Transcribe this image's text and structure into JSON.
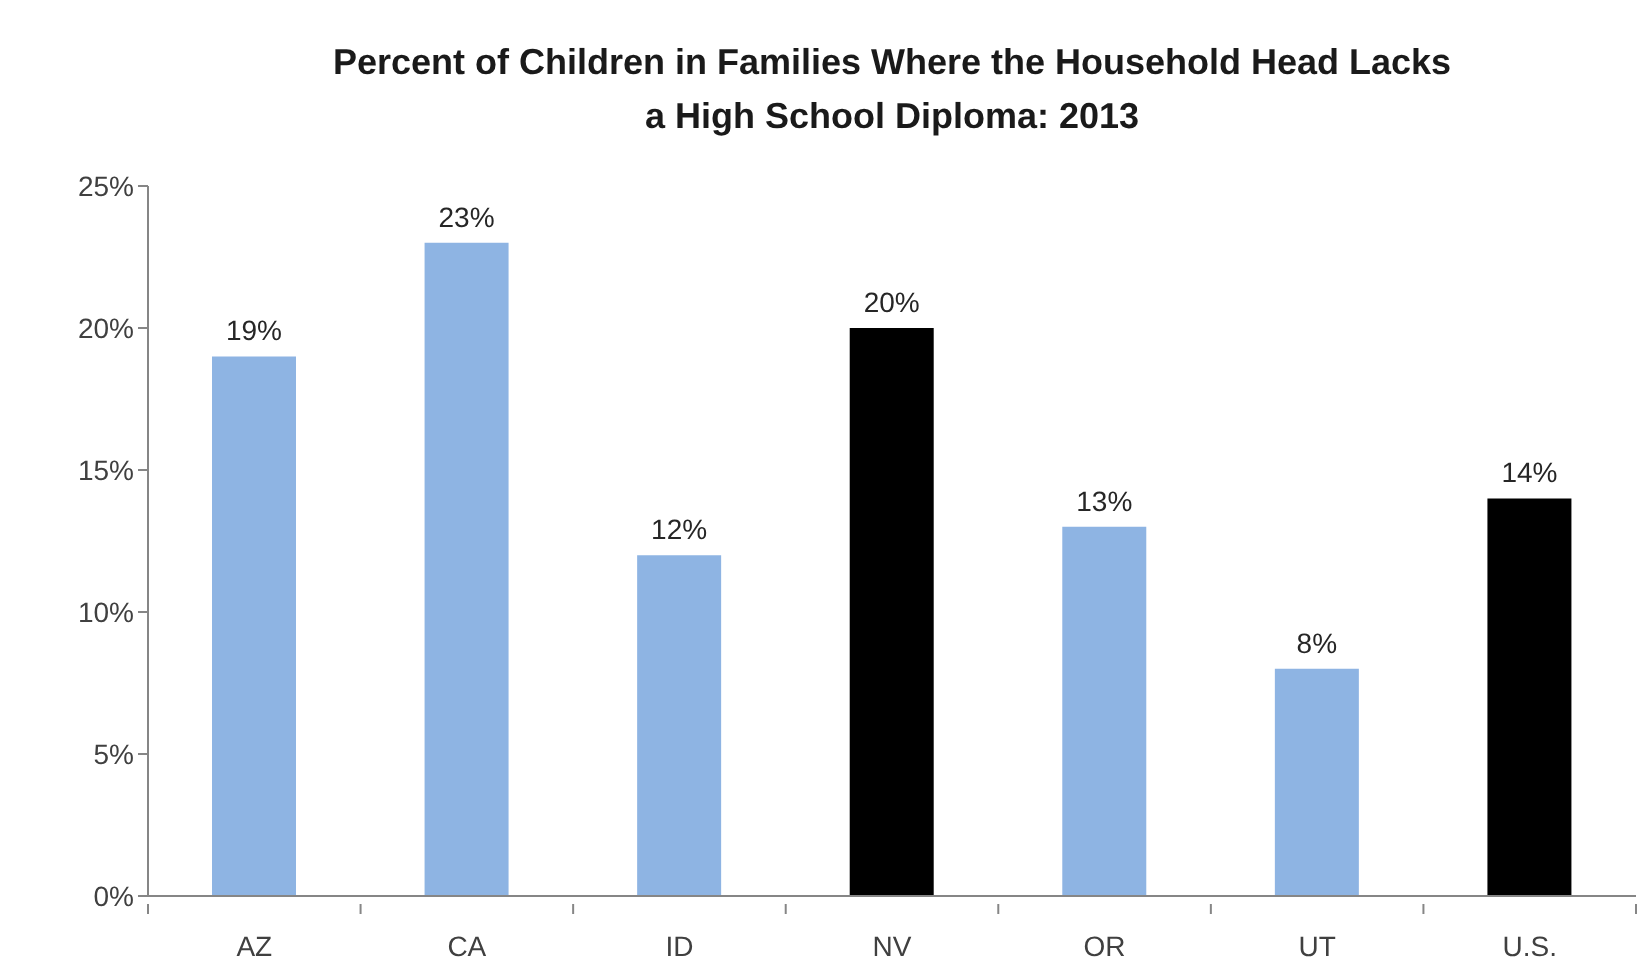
{
  "chart_data": {
    "type": "bar",
    "title": "Percent of Children in Families Where the Household Head Lacks\na High School Diploma: 2013",
    "categories": [
      "AZ",
      "CA",
      "ID",
      "NV",
      "OR",
      "UT",
      "U.S."
    ],
    "values": [
      19,
      23,
      12,
      20,
      13,
      8,
      14
    ],
    "colors": [
      "#8eb4e3",
      "#8eb4e3",
      "#8eb4e3",
      "#000000",
      "#8eb4e3",
      "#8eb4e3",
      "#000000"
    ],
    "value_labels": [
      "19%",
      "23%",
      "12%",
      "20%",
      "13%",
      "8%",
      "14%"
    ],
    "ylim": [
      0,
      25
    ],
    "yticks": [
      {
        "value": 0,
        "label": "0%"
      },
      {
        "value": 5,
        "label": "5%"
      },
      {
        "value": 10,
        "label": "10%"
      },
      {
        "value": 15,
        "label": "15%"
      },
      {
        "value": 20,
        "label": "20%"
      },
      {
        "value": 25,
        "label": "25%"
      }
    ]
  }
}
